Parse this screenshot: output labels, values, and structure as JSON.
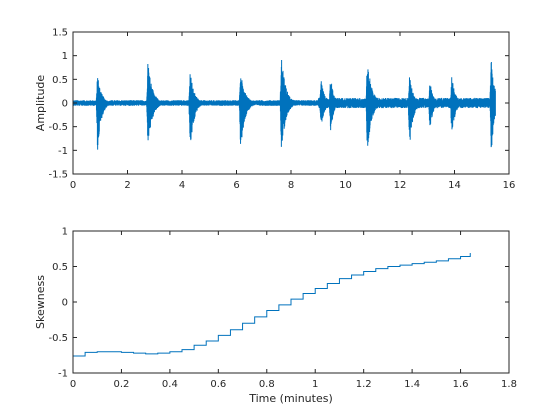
{
  "chart_data": [
    {
      "type": "line",
      "title": "",
      "xlabel": "",
      "ylabel": "Amplitude",
      "xlim": [
        0,
        16
      ],
      "ylim": [
        -1.5,
        1.5
      ],
      "xticks": [
        0,
        2,
        4,
        6,
        8,
        10,
        12,
        14,
        16
      ],
      "yticks": [
        -1.5,
        -1,
        -0.5,
        0,
        0.5,
        1,
        1.5
      ],
      "xtick_labels": [
        "0",
        "2",
        "4",
        "6",
        "8",
        "10",
        "12",
        "14",
        "16"
      ],
      "ytick_labels": [
        "-1.5",
        "-1",
        "-0.5",
        "0",
        "0.5",
        "1",
        "1.5"
      ],
      "grid": false,
      "color": "#0072bd",
      "signal_span": [
        0.0,
        15.5
      ],
      "baseline_noise": 0.04,
      "bursts": [
        {
          "t": 0.9,
          "pos": 0.62,
          "neg": -1.02,
          "dur": 0.4
        },
        {
          "t": 2.75,
          "pos": 0.92,
          "neg": -1.0,
          "dur": 0.45
        },
        {
          "t": 4.3,
          "pos": 0.7,
          "neg": -1.05,
          "dur": 0.4
        },
        {
          "t": 6.15,
          "pos": 0.68,
          "neg": -1.02,
          "dur": 0.45
        },
        {
          "t": 7.65,
          "pos": 0.98,
          "neg": -1.05,
          "dur": 0.45
        },
        {
          "t": 9.1,
          "pos": 0.52,
          "neg": -0.55,
          "dur": 0.35
        },
        {
          "t": 9.45,
          "pos": 0.6,
          "neg": -0.68,
          "dur": 0.3
        },
        {
          "t": 10.8,
          "pos": 0.95,
          "neg": -1.05,
          "dur": 0.45
        },
        {
          "t": 12.35,
          "pos": 0.58,
          "neg": -0.95,
          "dur": 0.4
        },
        {
          "t": 13.1,
          "pos": 0.48,
          "neg": -0.62,
          "dur": 0.3
        },
        {
          "t": 13.9,
          "pos": 0.62,
          "neg": -0.75,
          "dur": 0.35
        },
        {
          "t": 15.35,
          "pos": 1.15,
          "neg": -1.12,
          "dur": 0.3
        }
      ]
    },
    {
      "type": "line",
      "title": "",
      "xlabel": "Time (minutes)",
      "ylabel": "Skewness",
      "xlim": [
        0,
        1.8
      ],
      "ylim": [
        -1,
        1
      ],
      "xticks": [
        0,
        0.2,
        0.4,
        0.6,
        0.8,
        1,
        1.2,
        1.4,
        1.6,
        1.8
      ],
      "yticks": [
        -1,
        -0.5,
        0,
        0.5,
        1
      ],
      "xtick_labels": [
        "0",
        "0.2",
        "0.4",
        "0.6",
        "0.8",
        "1",
        "1.2",
        "1.4",
        "1.6",
        "1.8"
      ],
      "ytick_labels": [
        "-1",
        "-0.5",
        "0",
        "0.5",
        "1"
      ],
      "grid": false,
      "color": "#0072bd",
      "x": [
        0,
        0.05,
        0.1,
        0.15,
        0.2,
        0.25,
        0.3,
        0.35,
        0.4,
        0.45,
        0.5,
        0.55,
        0.6,
        0.65,
        0.7,
        0.75,
        0.8,
        0.85,
        0.9,
        0.95,
        1.0,
        1.05,
        1.1,
        1.15,
        1.2,
        1.25,
        1.3,
        1.35,
        1.4,
        1.45,
        1.5,
        1.55,
        1.6,
        1.64
      ],
      "y": [
        -0.76,
        -0.71,
        -0.7,
        -0.7,
        -0.71,
        -0.72,
        -0.73,
        -0.72,
        -0.7,
        -0.67,
        -0.61,
        -0.55,
        -0.47,
        -0.39,
        -0.3,
        -0.21,
        -0.12,
        -0.04,
        0.04,
        0.12,
        0.19,
        0.26,
        0.33,
        0.38,
        0.43,
        0.47,
        0.5,
        0.52,
        0.54,
        0.56,
        0.58,
        0.61,
        0.64,
        0.69
      ]
    }
  ]
}
